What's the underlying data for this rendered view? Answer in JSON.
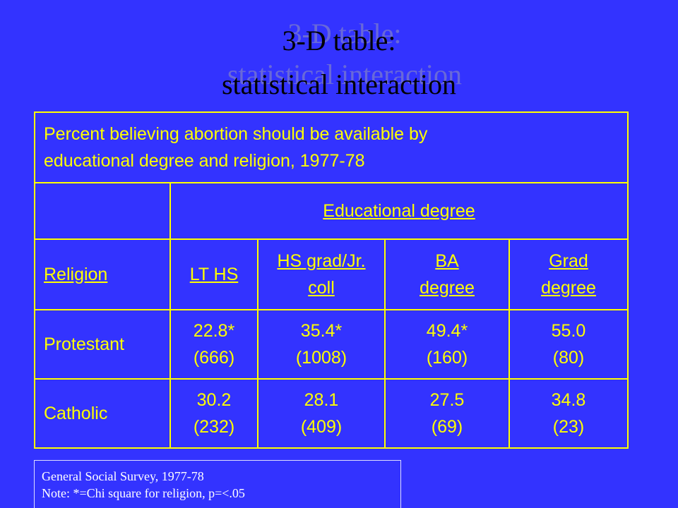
{
  "title": [
    "3-D table:",
    "statistical interaction"
  ],
  "table": {
    "caption": [
      "Percent believing abortion should be available by",
      "educational degree and religion, 1977-78"
    ],
    "group_header": "Educational degree",
    "columns": [
      [
        "Religion"
      ],
      [
        "LT HS"
      ],
      [
        "HS grad/Jr.",
        "coll"
      ],
      [
        "BA",
        "degree"
      ],
      [
        "Grad",
        "degree"
      ]
    ],
    "rows": [
      {
        "label": "Protestant",
        "cells": [
          [
            "22.8*",
            "(666)"
          ],
          [
            "35.4*",
            "(1008)"
          ],
          [
            "49.4*",
            "(160)"
          ],
          [
            "55.0",
            "(80)"
          ]
        ]
      },
      {
        "label": "Catholic",
        "cells": [
          [
            "30.2",
            "(232)"
          ],
          [
            "28.1",
            "(409)"
          ],
          [
            "27.5",
            "(69)"
          ],
          [
            "34.8",
            "(23)"
          ]
        ]
      }
    ]
  },
  "footnote": [
    "General Social Survey, 1977-78",
    "Note: *=Chi square for religion, p=<.05"
  ]
}
